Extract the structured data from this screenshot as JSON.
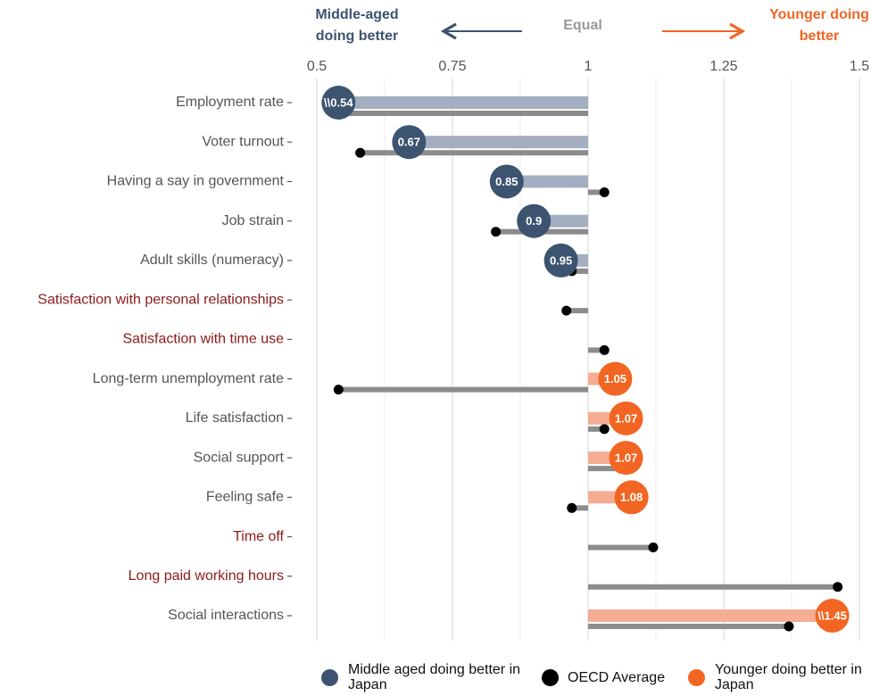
{
  "chart_data": {
    "type": "dot-bar",
    "header_left": "Middle-aged doing better",
    "header_left_color": "#3d5470",
    "header_center": "Equal",
    "header_center_color": "#999999",
    "header_right": "Younger doing better",
    "header_right_color": "#f26522",
    "categories": [
      "Employment rate",
      "Voter turnout",
      "Having a say in government",
      "Job strain",
      "Adult skills (numeracy)",
      "Satisfaction with personal relationships",
      "Satisfaction with time use",
      "Long-term  unemployment rate",
      "Life satisfaction",
      "Social support",
      "Feeling safe",
      "Time off",
      "Long paid working hours",
      "Social interactions"
    ],
    "category_colors": [
      "#555555",
      "#555555",
      "#555555",
      "#555555",
      "#555555",
      "#8b1a1a",
      "#8b1a1a",
      "#555555",
      "#555555",
      "#555555",
      "#555555",
      "#8b1a1a",
      "#8b1a1a",
      "#555555"
    ],
    "baseline": 1,
    "series": [
      {
        "name": "Middle aged doing better in Japan",
        "color": "#3d5470",
        "bar_color": "#a3afc0",
        "values": [
          0.54,
          0.67,
          0.85,
          0.9,
          0.95,
          null,
          null,
          null,
          null,
          null,
          null,
          null,
          null,
          null
        ],
        "value_labels": [
          "\\\\0.54",
          "0.67",
          "0.85",
          "0.9",
          "0.95",
          null,
          null,
          null,
          null,
          null,
          null,
          null,
          null,
          null
        ]
      },
      {
        "name": "OECD Average",
        "color": "#000000",
        "bar_color": "#8c8c8c",
        "values": [
          0.54,
          0.58,
          1.03,
          0.83,
          0.97,
          0.96,
          1.03,
          0.54,
          1.03,
          1.06,
          0.97,
          1.12,
          1.46,
          1.37
        ]
      },
      {
        "name": "Younger doing better in Japan",
        "color": "#f26522",
        "bar_color": "#f5ad94",
        "values": [
          null,
          null,
          null,
          null,
          null,
          null,
          null,
          1.05,
          1.07,
          1.07,
          1.08,
          null,
          null,
          1.45
        ],
        "value_labels": [
          null,
          null,
          null,
          null,
          null,
          null,
          null,
          "1.05",
          "1.07",
          "1.07",
          "1.08",
          null,
          null,
          "\\\\1.45"
        ]
      }
    ],
    "xlim": [
      0.5,
      1.5
    ],
    "xticks": [
      0.5,
      0.75,
      1,
      1.25,
      1.5
    ],
    "grid": true
  }
}
